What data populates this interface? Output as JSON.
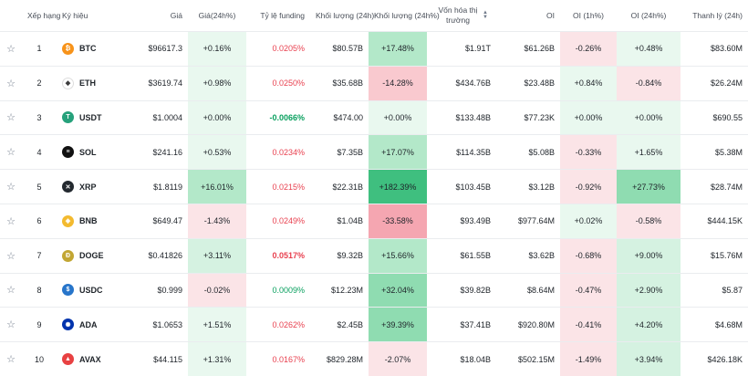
{
  "headers": {
    "rank": "Xếp hạng",
    "symbol": "Ký hiệu",
    "price": "Giá",
    "change24h": "Giá(24h%)",
    "funding": "Tỷ lệ funding",
    "volume": "Khối lượng (24h)",
    "volume_change": "Khối lượng (24h%)",
    "mcap": "Vốn hóa thị trường",
    "oi": "OI",
    "oi1h": "OI (1h%)",
    "oi24h": "OI (24h%)",
    "liq": "Thanh lý (24h)"
  },
  "rows": [
    {
      "rank": "1",
      "symbol": "BTC",
      "icon": "bitcoin-icon",
      "color": "#f7931a",
      "glyph": "₿",
      "price": "$96617.3",
      "change": "+0.16%",
      "funding": "0.0205%",
      "volume": "$80.57B",
      "vol_change": "+17.48%",
      "mcap": "$1.91T",
      "oi": "$61.26B",
      "oi1h": "-0.26%",
      "oi24h": "+0.48%",
      "liq": "$83.60M"
    },
    {
      "rank": "2",
      "symbol": "ETH",
      "icon": "ethereum-icon",
      "color": "#ffffff",
      "glyph": "◆",
      "price": "$3619.74",
      "change": "+0.98%",
      "funding": "0.0250%",
      "volume": "$35.68B",
      "vol_change": "-14.28%",
      "mcap": "$434.76B",
      "oi": "$23.48B",
      "oi1h": "+0.84%",
      "oi24h": "-0.84%",
      "liq": "$26.24M"
    },
    {
      "rank": "3",
      "symbol": "USDT",
      "icon": "tether-icon",
      "color": "#26a17b",
      "glyph": "T",
      "price": "$1.0004",
      "change": "+0.00%",
      "funding": "-0.0066%",
      "volume": "$474.00",
      "vol_change": "+0.00%",
      "mcap": "$133.48B",
      "oi": "$77.23K",
      "oi1h": "+0.00%",
      "oi24h": "+0.00%",
      "liq": "$690.55"
    },
    {
      "rank": "4",
      "symbol": "SOL",
      "icon": "solana-icon",
      "color": "#111111",
      "glyph": "≡",
      "price": "$241.16",
      "change": "+0.53%",
      "funding": "0.0234%",
      "volume": "$7.35B",
      "vol_change": "+17.07%",
      "mcap": "$114.35B",
      "oi": "$5.08B",
      "oi1h": "-0.33%",
      "oi24h": "+1.65%",
      "liq": "$5.38M"
    },
    {
      "rank": "5",
      "symbol": "XRP",
      "icon": "xrp-icon",
      "color": "#23292f",
      "glyph": "✕",
      "price": "$1.8119",
      "change": "+16.01%",
      "funding": "0.0215%",
      "volume": "$22.31B",
      "vol_change": "+182.39%",
      "mcap": "$103.45B",
      "oi": "$3.12B",
      "oi1h": "-0.92%",
      "oi24h": "+27.73%",
      "liq": "$28.74M"
    },
    {
      "rank": "6",
      "symbol": "BNB",
      "icon": "bnb-icon",
      "color": "#f3ba2f",
      "glyph": "◈",
      "price": "$649.47",
      "change": "-1.43%",
      "funding": "0.0249%",
      "volume": "$1.04B",
      "vol_change": "-33.58%",
      "mcap": "$93.49B",
      "oi": "$977.64M",
      "oi1h": "+0.02%",
      "oi24h": "-0.58%",
      "liq": "$444.15K"
    },
    {
      "rank": "7",
      "symbol": "DOGE",
      "icon": "dogecoin-icon",
      "color": "#c2a633",
      "glyph": "Ð",
      "price": "$0.41826",
      "change": "+3.11%",
      "funding": "0.0517%",
      "volume": "$9.32B",
      "vol_change": "+15.66%",
      "mcap": "$61.55B",
      "oi": "$3.62B",
      "oi1h": "-0.68%",
      "oi24h": "+9.00%",
      "liq": "$15.76M"
    },
    {
      "rank": "8",
      "symbol": "USDC",
      "icon": "usdc-icon",
      "color": "#2775ca",
      "glyph": "$",
      "price": "$0.999",
      "change": "-0.02%",
      "funding": "0.0009%",
      "volume": "$12.23M",
      "vol_change": "+32.04%",
      "mcap": "$39.82B",
      "oi": "$8.64M",
      "oi1h": "-0.47%",
      "oi24h": "+2.90%",
      "liq": "$5.87"
    },
    {
      "rank": "9",
      "symbol": "ADA",
      "icon": "cardano-icon",
      "color": "#0033ad",
      "glyph": "✺",
      "price": "$1.0653",
      "change": "+1.51%",
      "funding": "0.0262%",
      "volume": "$2.45B",
      "vol_change": "+39.39%",
      "mcap": "$37.41B",
      "oi": "$920.80M",
      "oi1h": "-0.41%",
      "oi24h": "+4.20%",
      "liq": "$4.68M"
    },
    {
      "rank": "10",
      "symbol": "AVAX",
      "icon": "avalanche-icon",
      "color": "#e84142",
      "glyph": "▲",
      "price": "$44.115",
      "change": "+1.31%",
      "funding": "0.0167%",
      "volume": "$829.28M",
      "vol_change": "-2.07%",
      "mcap": "$18.04B",
      "oi": "$502.15M",
      "oi1h": "-1.49%",
      "oi24h": "+3.94%",
      "liq": "$426.18K"
    }
  ]
}
